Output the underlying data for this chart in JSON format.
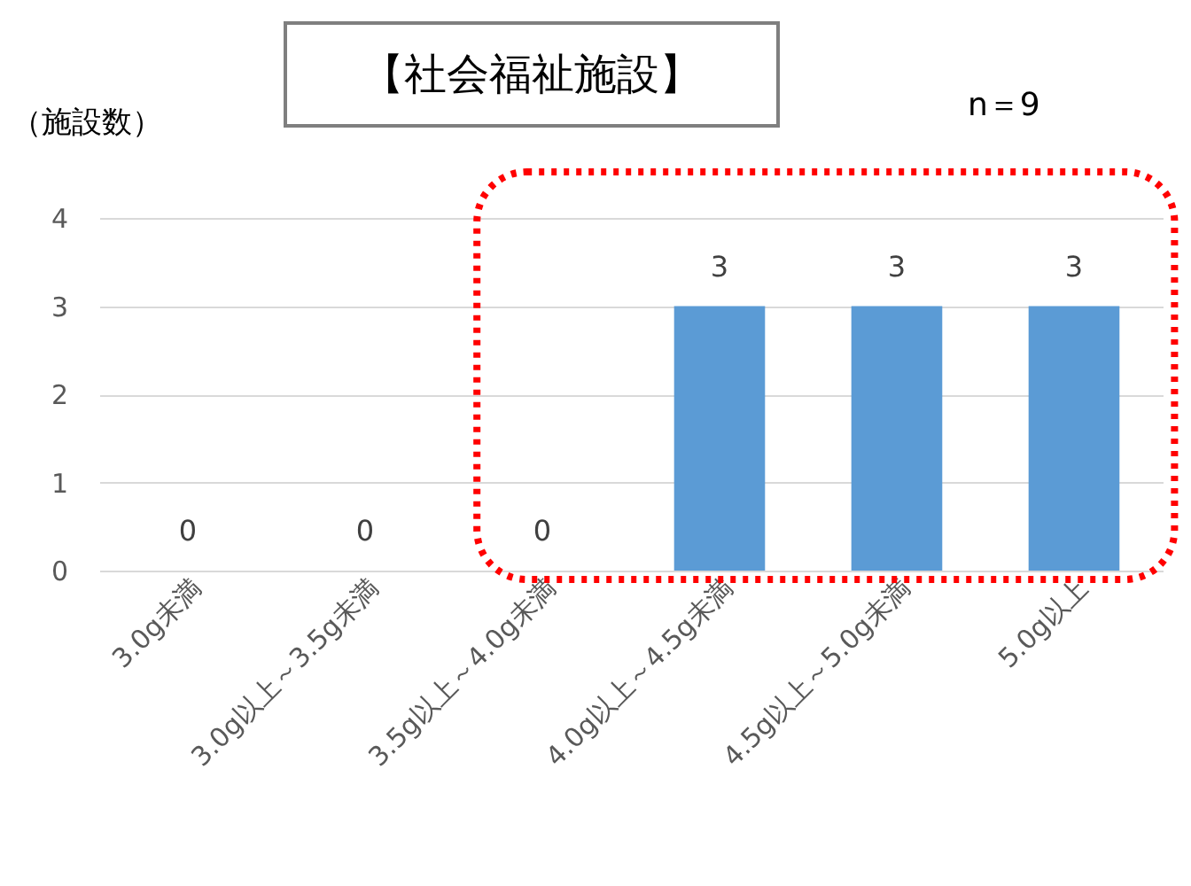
{
  "chart_data": {
    "type": "bar",
    "title": "【社会福祉施設】",
    "ylabel": "（施設数）",
    "annotations": [
      "n＝9"
    ],
    "categories": [
      "3.0g未満",
      "3.0g以上～3.5g未満",
      "3.5g以上～4.0g未満",
      "4.0g以上～4.5g未満",
      "4.5g以上～5.0g未満",
      "5.0g以上"
    ],
    "values": [
      0,
      0,
      0,
      3,
      3,
      3
    ],
    "color": "#5b9bd5",
    "ylim": [
      0,
      4
    ],
    "yticks": [
      0,
      1,
      2,
      3,
      4
    ],
    "grid": "y",
    "data_labels": true
  }
}
